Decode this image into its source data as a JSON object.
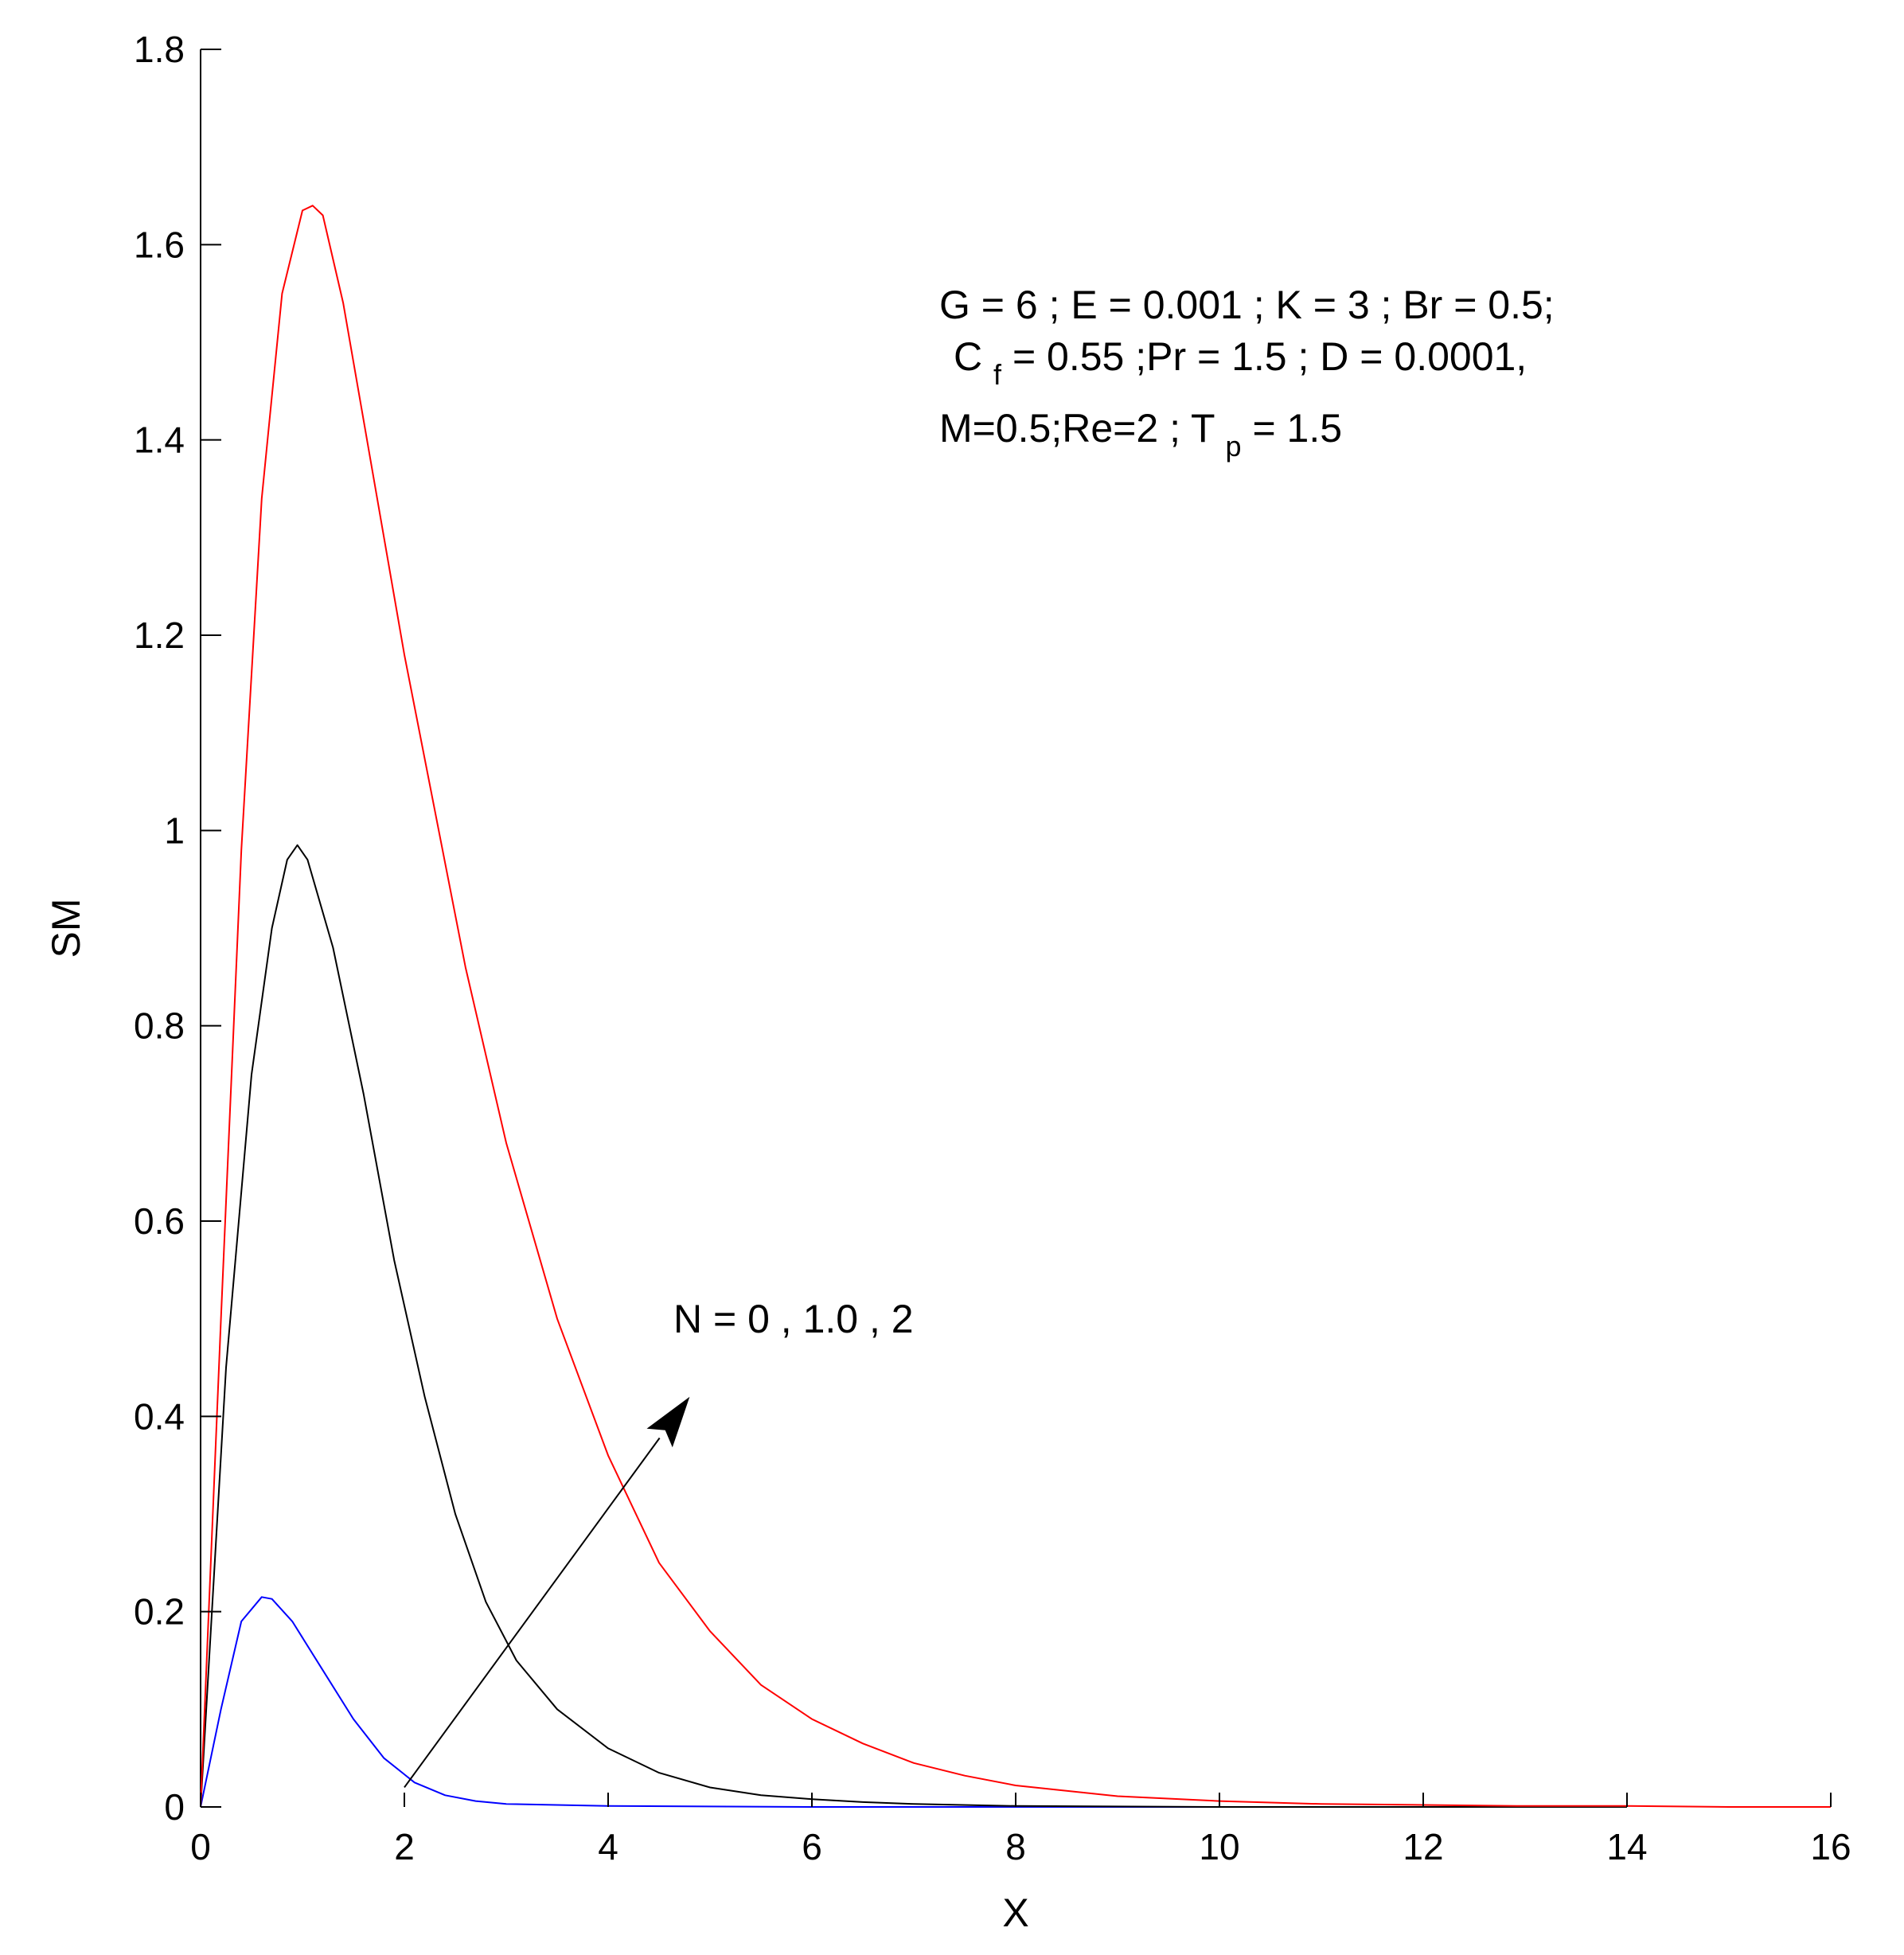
{
  "chart_data": {
    "type": "line",
    "xlabel": "X",
    "ylabel": "SM",
    "xlim": [
      0,
      16
    ],
    "ylim": [
      0,
      1.8
    ],
    "xticks": [
      0,
      2,
      4,
      6,
      8,
      10,
      12,
      14,
      16
    ],
    "yticks": [
      0,
      0.2,
      0.4,
      0.6,
      0.8,
      1,
      1.2,
      1.4,
      1.6,
      1.8
    ],
    "xtick_labels": [
      "0",
      "2",
      "4",
      "6",
      "8",
      "10",
      "12",
      "14",
      "16"
    ],
    "ytick_labels": [
      "0",
      "0.2",
      "0.4",
      "0.6",
      "0.8",
      "1",
      "1.2",
      "1.4",
      "1.6",
      "1.8"
    ],
    "grid": false,
    "series": [
      {
        "color": "#0000ff",
        "x": [
          0,
          0.2,
          0.4,
          0.6,
          0.7,
          0.9,
          1.2,
          1.5,
          1.8,
          2.1,
          2.4,
          2.7,
          3.0,
          4.0,
          6.0,
          8.0,
          10.0
        ],
        "y": [
          0,
          0.1,
          0.19,
          0.215,
          0.213,
          0.19,
          0.14,
          0.09,
          0.05,
          0.025,
          0.012,
          0.006,
          0.003,
          0.001,
          0,
          0,
          0
        ]
      },
      {
        "color": "#000000",
        "x": [
          0,
          0.25,
          0.5,
          0.7,
          0.85,
          0.95,
          1.05,
          1.3,
          1.6,
          1.9,
          2.2,
          2.5,
          2.8,
          3.1,
          3.5,
          4.0,
          4.5,
          5.0,
          5.5,
          6.0,
          6.5,
          7.0,
          8.0,
          10.0,
          12.0,
          14.0
        ],
        "y": [
          0,
          0.45,
          0.75,
          0.9,
          0.97,
          0.985,
          0.97,
          0.88,
          0.73,
          0.56,
          0.42,
          0.3,
          0.21,
          0.15,
          0.1,
          0.06,
          0.035,
          0.02,
          0.012,
          0.008,
          0.005,
          0.003,
          0.001,
          0,
          0,
          0
        ]
      },
      {
        "color": "#ff0000",
        "x": [
          0,
          0.2,
          0.4,
          0.6,
          0.8,
          1.0,
          1.1,
          1.2,
          1.4,
          1.6,
          1.8,
          2.0,
          2.3,
          2.6,
          3.0,
          3.5,
          4.0,
          4.5,
          5.0,
          5.5,
          6.0,
          6.5,
          7.0,
          7.5,
          8.0,
          9.0,
          10.0,
          11.0,
          12.0,
          13.0,
          14.0,
          15.0,
          16.0
        ],
        "y": [
          0,
          0.5,
          0.98,
          1.34,
          1.55,
          1.635,
          1.64,
          1.63,
          1.54,
          1.42,
          1.3,
          1.18,
          1.02,
          0.86,
          0.68,
          0.5,
          0.36,
          0.25,
          0.18,
          0.125,
          0.09,
          0.065,
          0.045,
          0.032,
          0.022,
          0.011,
          0.006,
          0.003,
          0.002,
          0.001,
          0.001,
          0,
          0
        ]
      }
    ],
    "annotations": {
      "params_line1": "G = 6 ;  E = 0.001 ; K = 3 ; Br = 0.5;",
      "params_line2_pre": "C",
      "params_line2_sub": "f",
      "params_line2_post": " = 0.55 ;Pr = 1.5 ; D = 0.0001,",
      "params_line3_pre": "M=0.5;Re=2 ; T",
      "params_line3_sub": "p",
      "params_line3_post": " = 1.5",
      "arrow_label": "N = 0 , 1.0 , 2",
      "arrow_from": [
        2.0,
        0.02
      ],
      "arrow_to": [
        4.8,
        0.42
      ]
    }
  }
}
